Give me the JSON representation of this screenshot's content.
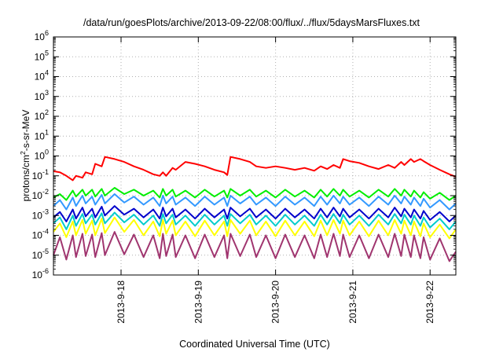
{
  "chart_data": {
    "type": "line",
    "title": "/data/run/goesPlots/archive/2013-09-22/08:00/flux/../flux/5daysMarsFluxes.txt",
    "xlabel": "Coordinated Universal Time (UTC)",
    "ylabel": "protons/cm²-s-sr-MeV",
    "ylabel_parts": {
      "a": "protons/cm",
      "sup": "2",
      "b": "-s-sr-MeV"
    },
    "yscale": "log",
    "ylim": [
      1e-06,
      1000000.0
    ],
    "y_tick_base": "10",
    "y_tick_exponents": [
      "-6",
      "-5",
      "-4",
      "-3",
      "-2",
      "-1",
      "0",
      "1",
      "2",
      "3",
      "4",
      "5",
      "6"
    ],
    "xlim": [
      "2013-09-17 03:00",
      "2013-09-22 08:00"
    ],
    "x_ticks": [
      "2013-9-18",
      "2013-9-19",
      "2013-9-20",
      "2013-9-21",
      "2013-9-22"
    ],
    "grid": true,
    "x": [
      "2013-09-17 03:00",
      "2013-09-17 05:00",
      "2013-09-17 07:00",
      "2013-09-17 09:00",
      "2013-09-17 10:00",
      "2013-09-17 12:00",
      "2013-09-17 13:00",
      "2013-09-17 15:00",
      "2013-09-17 16:00",
      "2013-09-17 18:00",
      "2013-09-17 19:00",
      "2013-09-17 22:00",
      "2013-09-18 01:00",
      "2013-09-18 04:00",
      "2013-09-18 07:00",
      "2013-09-18 10:00",
      "2013-09-18 12:00",
      "2013-09-18 13:00",
      "2013-09-18 14:00",
      "2013-09-18 16:00",
      "2013-09-18 17:00",
      "2013-09-18 20:00",
      "2013-09-18 23:00",
      "2013-09-19 02:00",
      "2013-09-19 05:00",
      "2013-09-19 08:00",
      "2013-09-19 09:00",
      "2013-09-19 10:00",
      "2013-09-19 13:00",
      "2013-09-19 16:00",
      "2013-09-19 18:00",
      "2013-09-19 21:00",
      "2013-09-20 00:00",
      "2013-09-20 03:00",
      "2013-09-20 06:00",
      "2013-09-20 09:00",
      "2013-09-20 12:00",
      "2013-09-20 14:00",
      "2013-09-20 16:00",
      "2013-09-20 18:00",
      "2013-09-20 20:00",
      "2013-09-20 21:00",
      "2013-09-20 23:00",
      "2013-09-21 02:00",
      "2013-09-21 05:00",
      "2013-09-21 08:00",
      "2013-09-21 11:00",
      "2013-09-21 13:00",
      "2013-09-21 15:00",
      "2013-09-21 16:00",
      "2013-09-21 18:00",
      "2013-09-21 19:00",
      "2013-09-21 21:00",
      "2013-09-21 22:00",
      "2013-09-22 00:00",
      "2013-09-22 03:00",
      "2013-09-22 06:00",
      "2013-09-22 08:00"
    ],
    "series": [
      {
        "color": "#ff0000",
        "values": [
          0.17,
          0.15,
          0.1,
          0.06,
          0.1,
          0.08,
          0.15,
          0.12,
          0.4,
          0.3,
          0.9,
          0.7,
          0.5,
          0.3,
          0.2,
          0.12,
          0.1,
          0.15,
          0.1,
          0.25,
          0.2,
          0.5,
          0.4,
          0.3,
          0.2,
          0.15,
          0.11,
          0.9,
          0.7,
          0.5,
          0.3,
          0.25,
          0.3,
          0.25,
          0.2,
          0.25,
          0.18,
          0.3,
          0.22,
          0.35,
          0.25,
          0.7,
          0.55,
          0.45,
          0.3,
          0.22,
          0.35,
          0.25,
          0.5,
          0.35,
          0.7,
          0.5,
          0.7,
          0.55,
          0.35,
          0.2,
          0.12,
          0.09
        ]
      },
      {
        "color": "#00ee00",
        "values": [
          0.008,
          0.012,
          0.006,
          0.018,
          0.009,
          0.02,
          0.01,
          0.02,
          0.009,
          0.022,
          0.01,
          0.025,
          0.012,
          0.02,
          0.01,
          0.018,
          0.008,
          0.022,
          0.01,
          0.02,
          0.009,
          0.018,
          0.008,
          0.02,
          0.009,
          0.018,
          0.008,
          0.022,
          0.01,
          0.02,
          0.009,
          0.018,
          0.008,
          0.02,
          0.009,
          0.018,
          0.008,
          0.02,
          0.009,
          0.022,
          0.01,
          0.02,
          0.009,
          0.018,
          0.008,
          0.02,
          0.009,
          0.022,
          0.01,
          0.02,
          0.009,
          0.018,
          0.008,
          0.015,
          0.007,
          0.014,
          0.006,
          0.01
        ]
      },
      {
        "color": "#3399ff",
        "values": [
          0.003,
          0.006,
          0.002,
          0.008,
          0.003,
          0.01,
          0.004,
          0.009,
          0.0035,
          0.011,
          0.004,
          0.012,
          0.0045,
          0.009,
          0.0035,
          0.008,
          0.003,
          0.01,
          0.004,
          0.009,
          0.0035,
          0.008,
          0.003,
          0.009,
          0.0035,
          0.008,
          0.003,
          0.01,
          0.004,
          0.009,
          0.0035,
          0.008,
          0.003,
          0.009,
          0.0035,
          0.008,
          0.003,
          0.009,
          0.0035,
          0.01,
          0.004,
          0.009,
          0.0035,
          0.008,
          0.003,
          0.009,
          0.0035,
          0.01,
          0.004,
          0.009,
          0.0035,
          0.008,
          0.003,
          0.007,
          0.0025,
          0.006,
          0.002,
          0.004
        ]
      },
      {
        "color": "#0000cc",
        "values": [
          0.0008,
          0.0015,
          0.0005,
          0.002,
          0.0007,
          0.0025,
          0.0009,
          0.0022,
          0.0008,
          0.0028,
          0.001,
          0.003,
          0.0011,
          0.0022,
          0.0008,
          0.002,
          0.0007,
          0.0025,
          0.0009,
          0.0022,
          0.0008,
          0.002,
          0.0007,
          0.0022,
          0.0008,
          0.002,
          0.0007,
          0.0025,
          0.0009,
          0.0022,
          0.0008,
          0.002,
          0.0007,
          0.0022,
          0.0008,
          0.002,
          0.0007,
          0.0022,
          0.0008,
          0.0025,
          0.0009,
          0.0022,
          0.0008,
          0.002,
          0.0007,
          0.0022,
          0.0008,
          0.0025,
          0.0009,
          0.0022,
          0.0008,
          0.002,
          0.0007,
          0.0017,
          0.0006,
          0.0015,
          0.0005,
          0.001
        ]
      },
      {
        "color": "#00cccc",
        "values": [
          0.0004,
          0.0008,
          0.0002,
          0.001,
          0.0003,
          0.0012,
          0.0004,
          0.0011,
          0.00035,
          0.0013,
          0.0004,
          0.0014,
          0.00045,
          0.0011,
          0.00035,
          0.001,
          0.0003,
          0.0012,
          0.0004,
          0.0011,
          0.00035,
          0.001,
          0.0003,
          0.0011,
          0.00035,
          0.001,
          0.0003,
          0.0012,
          0.0004,
          0.0011,
          0.00035,
          0.001,
          0.0003,
          0.0011,
          0.00035,
          0.001,
          0.0003,
          0.0011,
          0.00035,
          0.0012,
          0.0004,
          0.0011,
          0.00035,
          0.001,
          0.0003,
          0.0011,
          0.00035,
          0.0012,
          0.0004,
          0.0011,
          0.00035,
          0.001,
          0.0003,
          0.0008,
          0.00025,
          0.0007,
          0.0002,
          0.0005
        ]
      },
      {
        "color": "#ffff00",
        "values": [
          0.00015,
          0.0004,
          8e-05,
          0.0005,
          0.0001,
          0.0006,
          0.00012,
          0.00055,
          0.0001,
          0.0007,
          0.00013,
          0.0008,
          0.00015,
          0.0006,
          0.0001,
          0.0005,
          9e-05,
          0.0006,
          0.00012,
          0.00055,
          0.0001,
          0.0005,
          9e-05,
          0.00055,
          0.0001,
          0.0005,
          9e-05,
          0.0006,
          0.00012,
          0.00055,
          0.0001,
          0.0005,
          9e-05,
          0.00055,
          0.0001,
          0.0005,
          9e-05,
          0.00055,
          0.0001,
          0.0006,
          0.00012,
          0.00055,
          0.0001,
          0.0005,
          9e-05,
          0.00055,
          0.0001,
          0.0006,
          0.00012,
          0.00055,
          0.0001,
          0.0005,
          9e-05,
          0.0004,
          8e-05,
          0.00035,
          7e-05,
          0.0002
        ]
      },
      {
        "color": "#a0356f",
        "values": [
          1e-05,
          8e-05,
          6e-06,
          0.0001,
          8e-06,
          0.00012,
          9e-06,
          0.00011,
          8e-06,
          0.00013,
          1e-05,
          0.00015,
          1.1e-05,
          0.00011,
          8e-06,
          0.0001,
          7e-06,
          0.00012,
          9e-06,
          0.00011,
          8e-06,
          0.0001,
          7e-06,
          0.00011,
          8e-06,
          0.0001,
          7e-06,
          0.00012,
          9e-06,
          0.00011,
          8e-06,
          0.0001,
          7e-06,
          0.00011,
          8e-06,
          0.0001,
          7e-06,
          0.00011,
          8e-06,
          0.00012,
          9e-06,
          0.00011,
          8e-06,
          0.0001,
          7e-06,
          0.00011,
          8e-06,
          0.00012,
          9e-06,
          0.00011,
          8e-06,
          0.0001,
          7e-06,
          8e-05,
          6e-06,
          7e-05,
          5e-06,
          1.5e-05
        ]
      }
    ]
  }
}
